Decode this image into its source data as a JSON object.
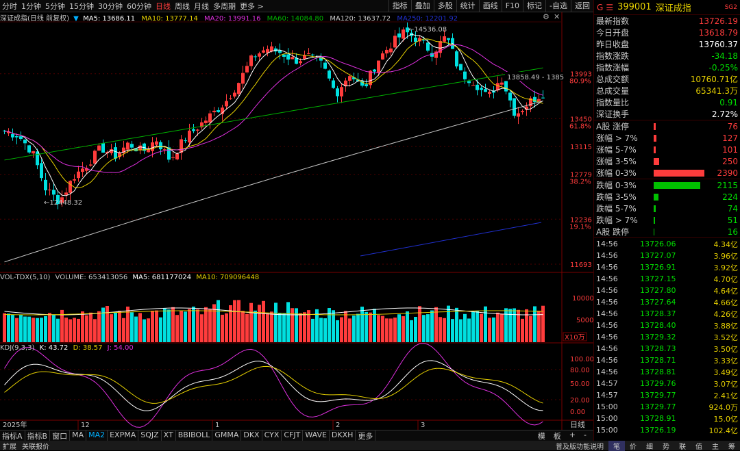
{
  "tabs": [
    "分时",
    "1分钟",
    "5分钟",
    "15分钟",
    "30分钟",
    "60分钟",
    "日线",
    "周线",
    "月线",
    "多周期",
    "更多"
  ],
  "right_tools": [
    "指标",
    "叠加",
    "多股",
    "统计",
    "画线",
    "F10",
    "标记",
    "-自选",
    "返回"
  ],
  "main_legend": {
    "name": "深证成指(日线 前复权)",
    "ma5": "MA5: 13686.11",
    "ma10": "MA10: 13777.14",
    "ma20": "MA20: 13991.16",
    "ma60": "MA60: 14084.80",
    "ma120": "MA120: 13637.72",
    "ma250": "MA250: 12201.92"
  },
  "colors": {
    "up": "#ff3c3c",
    "down": "#00e0e0",
    "ma5": "#ffffff",
    "ma10": "#e6d000",
    "ma20": "#e030e0",
    "ma60": "#00b000",
    "ma120": "#c8c8c8",
    "ma250": "#2030d0"
  },
  "price_axis": [
    {
      "v": "13993",
      "p": "80.9%"
    },
    {
      "v": "13450",
      "p": "61.8%"
    },
    {
      "v": "13115",
      "p": ""
    },
    {
      "v": "12779",
      "p": "38.2%"
    },
    {
      "v": "12236",
      "p": "19.1%"
    },
    {
      "v": "11693",
      "p": ""
    }
  ],
  "annotations": {
    "high": "14536.08",
    "low": "12448.32",
    "range": "13858.49 - 1385"
  },
  "vol_legend": {
    "name": "VOL-TDX(5,10)",
    "volume": "VOLUME: 653413056",
    "ma5": "MA5: 681177024",
    "ma10": "MA10: 709096448"
  },
  "vol_axis": [
    "10000",
    "5000"
  ],
  "vol_unit": "X10万",
  "kdj_legend": {
    "name": "KDJ(9,3,3)",
    "k": "K: 43.72",
    "d": "D: 38.57",
    "j": "J: 54.00"
  },
  "kdj_axis": [
    "100.00",
    "80.00",
    "50.00",
    "20.00",
    "0.00"
  ],
  "date_axis": {
    "year": "2025年",
    "m12": "12",
    "m1": "1",
    "m2": "2",
    "m3": "3",
    "period": "日线"
  },
  "bottom_tabs": [
    "指标A",
    "指标B",
    "窗口",
    "MA",
    "MA2",
    "EXPMA",
    "SQJZ",
    "XT",
    "BBIBOLL",
    "GMMA",
    "DKX",
    "CYX",
    "CFJT",
    "WAVE",
    "DKXH",
    "更多"
  ],
  "bottom_right": [
    "模",
    "板",
    "+",
    "-"
  ],
  "stock": {
    "g": "G",
    "eq": "☰",
    "code": "399001",
    "name": "深证成指",
    "sg": "SG2"
  },
  "quote": [
    {
      "l": "最新指数",
      "v": "13726.19",
      "c": "#ff3c3c"
    },
    {
      "l": "今日开盘",
      "v": "13618.79",
      "c": "#ff3c3c"
    },
    {
      "l": "昨日收盘",
      "v": "13760.37",
      "c": "#ffffff"
    },
    {
      "l": "指数涨跌",
      "v": "-34.18",
      "c": "#00e000"
    },
    {
      "l": "指数涨幅",
      "v": "-0.25%",
      "c": "#00e000"
    },
    {
      "l": "总成交额",
      "v": "10760.71亿",
      "c": "#e6d000"
    },
    {
      "l": "总成交量",
      "v": "65341.3万",
      "c": "#e6d000"
    },
    {
      "l": "指数量比",
      "v": "0.91",
      "c": "#00e000"
    },
    {
      "l": "深证换手",
      "v": "2.72%",
      "c": "#ffffff"
    }
  ],
  "breadth_up": [
    {
      "l": "A股 涨停",
      "v": "76",
      "w": 3
    },
    {
      "l": "涨幅 > 7%",
      "v": "127",
      "w": 4
    },
    {
      "l": "涨幅 5-7%",
      "v": "101",
      "w": 3
    },
    {
      "l": "涨幅 3-5%",
      "v": "250",
      "w": 8
    },
    {
      "l": "涨幅 0-3%",
      "v": "2390",
      "w": 72
    }
  ],
  "breadth_down": [
    {
      "l": "跌幅 0-3%",
      "v": "2115",
      "w": 66
    },
    {
      "l": "跌幅 3-5%",
      "v": "224",
      "w": 7
    },
    {
      "l": "跌幅 5-7%",
      "v": "74",
      "w": 3
    },
    {
      "l": "跌幅 > 7%",
      "v": "51",
      "w": 2
    },
    {
      "l": "A股 跌停",
      "v": "16",
      "w": 1
    }
  ],
  "ticks": [
    [
      "14:56",
      "13726.06",
      "4.34亿"
    ],
    [
      "14:56",
      "13727.07",
      "3.96亿"
    ],
    [
      "14:56",
      "13726.91",
      "3.92亿"
    ],
    [
      "14:56",
      "13727.15",
      "4.70亿"
    ],
    [
      "14:56",
      "13727.80",
      "4.64亿"
    ],
    [
      "14:56",
      "13727.64",
      "4.66亿"
    ],
    [
      "14:56",
      "13728.37",
      "4.26亿"
    ],
    [
      "14:56",
      "13728.40",
      "3.88亿"
    ],
    [
      "14:56",
      "13729.32",
      "3.52亿"
    ],
    [
      "14:56",
      "13728.73",
      "3.50亿"
    ],
    [
      "14:56",
      "13728.71",
      "3.33亿"
    ],
    [
      "14:56",
      "13728.81",
      "3.49亿"
    ],
    [
      "14:57",
      "13729.76",
      "3.07亿"
    ],
    [
      "14:57",
      "13729.77",
      "2.41亿"
    ],
    [
      "15:00",
      "13729.77",
      "924.0万"
    ],
    [
      "15:00",
      "13728.91",
      "15.0亿"
    ],
    [
      "15:00",
      "13726.19",
      "102.4亿"
    ]
  ],
  "status_left": [
    "扩展",
    "关联报价"
  ],
  "status_right": [
    "普及版功能说明",
    "笔",
    "价",
    "细",
    "势",
    "联",
    "值",
    "主",
    "筹"
  ]
}
